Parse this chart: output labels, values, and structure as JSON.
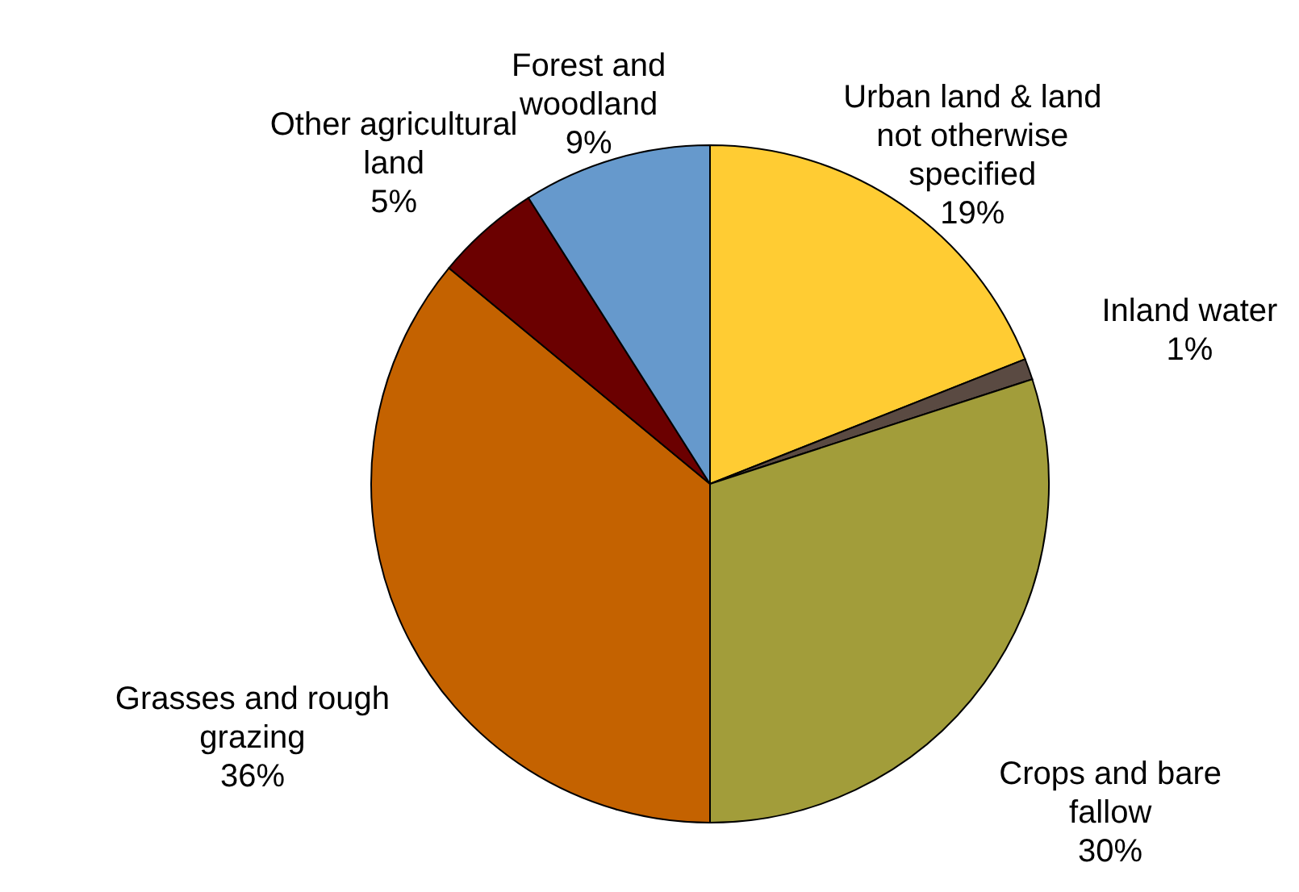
{
  "chart_data": {
    "type": "pie",
    "categories": [
      "Urban land & land not otherwise specified",
      "Inland water",
      "Crops and bare fallow",
      "Grasses and rough grazing",
      "Other agricultural land",
      "Forest and woodland"
    ],
    "values": [
      19,
      1,
      30,
      36,
      5,
      9
    ],
    "value_labels": [
      "19%",
      "1%",
      "30%",
      "36%",
      "5%",
      "9%"
    ],
    "colors": [
      "#ffcc33",
      "#5a4a42",
      "#a29d3a",
      "#c46200",
      "#6b0000",
      "#6699cc"
    ]
  }
}
